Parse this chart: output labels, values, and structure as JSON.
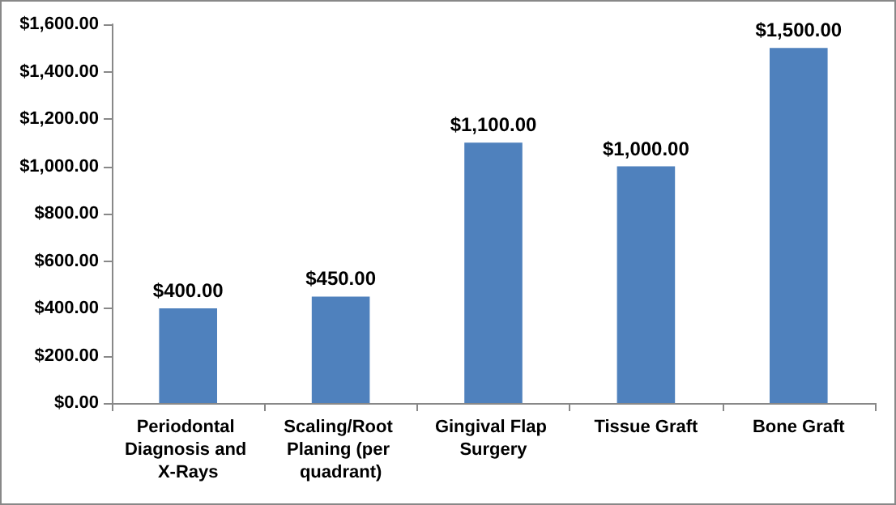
{
  "chart_data": {
    "type": "bar",
    "categories": [
      "Periodontal Diagnosis and X-Rays",
      "Scaling/Root Planing (per quadrant)",
      "Gingival Flap Surgery",
      "Tissue Graft",
      "Bone Graft"
    ],
    "values": [
      400,
      450,
      1100,
      1000,
      1500
    ],
    "color": "#4f81bd",
    "value_labels": [
      "$400.00",
      "$450.00",
      "$1,100.00",
      "$1,000.00",
      "$1,500.00"
    ],
    "ylim": [
      0,
      1600
    ],
    "yticks": [
      {
        "value": 0,
        "label": "$0.00"
      },
      {
        "value": 200,
        "label": "$200.00"
      },
      {
        "value": 400,
        "label": "$400.00"
      },
      {
        "value": 600,
        "label": "$600.00"
      },
      {
        "value": 800,
        "label": "$800.00"
      },
      {
        "value": 1000,
        "label": "$1,000.00"
      },
      {
        "value": 1200,
        "label": "$1,200.00"
      },
      {
        "value": 1400,
        "label": "$1,400.00"
      },
      {
        "value": 1600,
        "label": "$1,600.00"
      }
    ],
    "grid": false
  }
}
